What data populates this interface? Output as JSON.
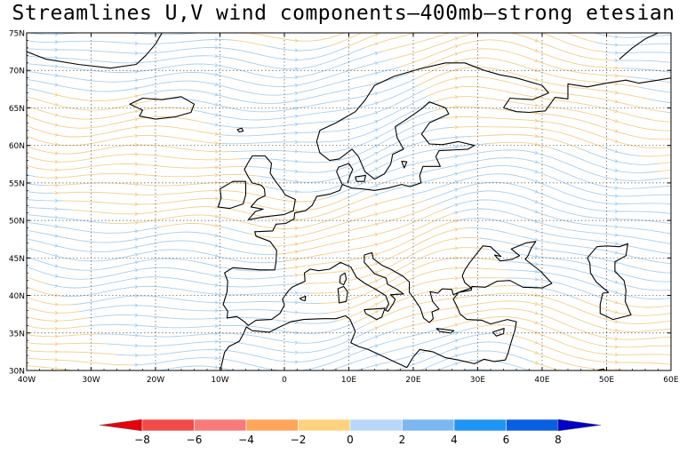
{
  "title": "Streamlines U,V wind components–400mb–strong etesian",
  "map": {
    "lon_range": [
      -40,
      60
    ],
    "lat_range": [
      30,
      75
    ],
    "grid": "dotted",
    "lon_ticks": [
      {
        "value": -40,
        "label": "40W"
      },
      {
        "value": -30,
        "label": "30W"
      },
      {
        "value": -20,
        "label": "20W"
      },
      {
        "value": -10,
        "label": "10W"
      },
      {
        "value": 0,
        "label": "0"
      },
      {
        "value": 10,
        "label": "10E"
      },
      {
        "value": 20,
        "label": "20E"
      },
      {
        "value": 30,
        "label": "30E"
      },
      {
        "value": 40,
        "label": "40E"
      },
      {
        "value": 50,
        "label": "50E"
      },
      {
        "value": 60,
        "label": "60E"
      }
    ],
    "lat_ticks": [
      {
        "value": 30,
        "label": "30N"
      },
      {
        "value": 35,
        "label": "35N"
      },
      {
        "value": 40,
        "label": "40N"
      },
      {
        "value": 45,
        "label": "45N"
      },
      {
        "value": 50,
        "label": "50N"
      },
      {
        "value": 55,
        "label": "55N"
      },
      {
        "value": 60,
        "label": "60N"
      },
      {
        "value": 65,
        "label": "65N"
      },
      {
        "value": 70,
        "label": "70N"
      },
      {
        "value": 75,
        "label": "75N"
      }
    ],
    "streamline_colors": {
      "positive": "#a9cfee",
      "negative": "#f2cf8e"
    }
  },
  "colorbar": {
    "colors": [
      "#e8000b",
      "#f24a4a",
      "#f97a7a",
      "#fda65a",
      "#fed27e",
      "#b7d8f7",
      "#7cb7f1",
      "#1f94f4",
      "#0a5ee0",
      "#0000c8"
    ],
    "labels": [
      "-8",
      "-6",
      "-4",
      "-2",
      "0",
      "2",
      "4",
      "6",
      "8"
    ]
  }
}
